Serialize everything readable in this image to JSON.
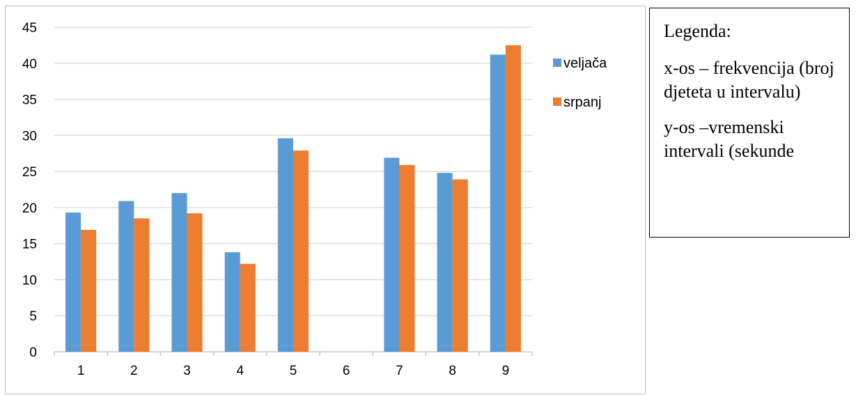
{
  "chart_data": {
    "type": "bar",
    "categories": [
      "1",
      "2",
      "3",
      "4",
      "5",
      "6",
      "7",
      "8",
      "9"
    ],
    "series": [
      {
        "name": "veljača",
        "color": "#5b9bd5",
        "values": [
          19.3,
          20.9,
          22.0,
          13.8,
          29.6,
          0,
          26.9,
          24.8,
          41.2
        ]
      },
      {
        "name": "srpanj",
        "color": "#ed7d31",
        "values": [
          16.9,
          18.5,
          19.2,
          12.2,
          27.9,
          0,
          25.9,
          23.9,
          42.5
        ]
      }
    ],
    "ylim": [
      0,
      45
    ],
    "yticks": [
      0,
      5,
      10,
      15,
      20,
      25,
      30,
      35,
      40,
      45
    ],
    "grid": true,
    "legend_position": "right"
  },
  "note": {
    "title": "Legenda:",
    "x_axis": "x-os – frekvencija (broj djeteta u intervalu)",
    "y_axis": "y-os –vremenski intervali (sekunde"
  }
}
